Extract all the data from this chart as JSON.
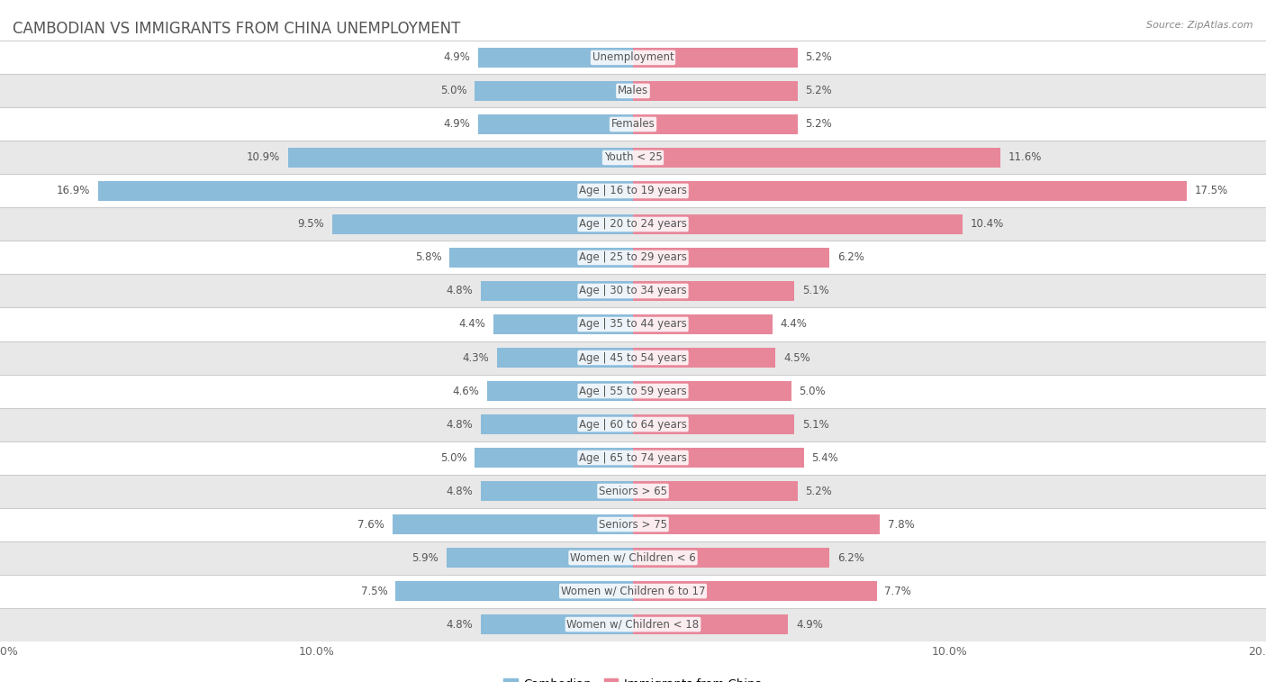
{
  "title": "CAMBODIAN VS IMMIGRANTS FROM CHINA UNEMPLOYMENT",
  "source": "Source: ZipAtlas.com",
  "categories": [
    "Unemployment",
    "Males",
    "Females",
    "Youth < 25",
    "Age | 16 to 19 years",
    "Age | 20 to 24 years",
    "Age | 25 to 29 years",
    "Age | 30 to 34 years",
    "Age | 35 to 44 years",
    "Age | 45 to 54 years",
    "Age | 55 to 59 years",
    "Age | 60 to 64 years",
    "Age | 65 to 74 years",
    "Seniors > 65",
    "Seniors > 75",
    "Women w/ Children < 6",
    "Women w/ Children 6 to 17",
    "Women w/ Children < 18"
  ],
  "cambodian": [
    4.9,
    5.0,
    4.9,
    10.9,
    16.9,
    9.5,
    5.8,
    4.8,
    4.4,
    4.3,
    4.6,
    4.8,
    5.0,
    4.8,
    7.6,
    5.9,
    7.5,
    4.8
  ],
  "china": [
    5.2,
    5.2,
    5.2,
    11.6,
    17.5,
    10.4,
    6.2,
    5.1,
    4.4,
    4.5,
    5.0,
    5.1,
    5.4,
    5.2,
    7.8,
    6.2,
    7.7,
    4.9
  ],
  "cambodian_color": "#8bbcda",
  "china_color": "#e8879a",
  "axis_max": 20.0,
  "row_bg_color": "#e8e8e8",
  "row_white_color": "#ffffff",
  "title_fontsize": 12,
  "label_fontsize": 8.5,
  "tick_fontsize": 9,
  "legend_fontsize": 9.5,
  "value_label_color": "#555555",
  "category_label_color": "#555555"
}
